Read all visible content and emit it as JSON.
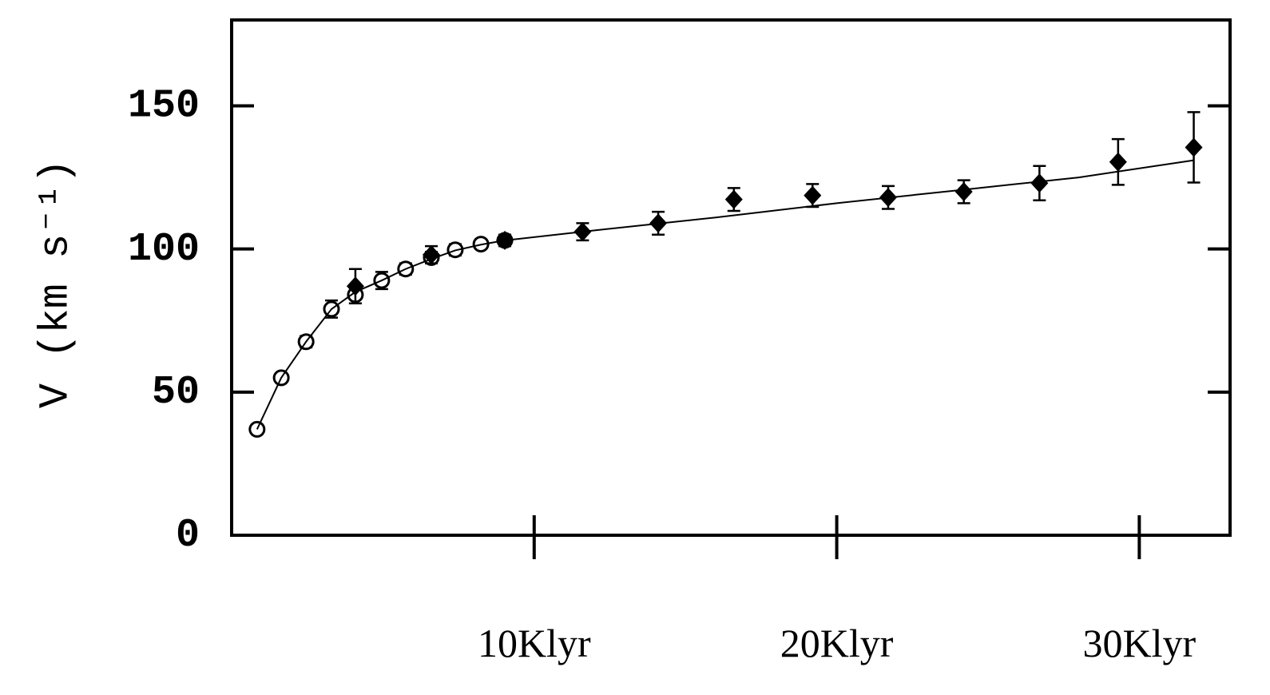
{
  "chart_data": {
    "type": "scatter",
    "y_label": "V (km s⁻¹)",
    "xlim": [
      0,
      33
    ],
    "xticks": [
      {
        "value": 10,
        "label": "10Klyr"
      },
      {
        "value": 20,
        "label": "20Klyr"
      },
      {
        "value": 30,
        "label": "30Klyr"
      }
    ],
    "ylim": [
      0,
      180
    ],
    "yticks": [
      0,
      50,
      100,
      150
    ],
    "series": [
      {
        "marker": "open-circle",
        "color": "#000000",
        "x": [
          0.84,
          1.64,
          2.46,
          3.3,
          4.09,
          4.96,
          5.75,
          6.6,
          7.39,
          8.24,
          9.03
        ],
        "values": [
          37,
          55,
          67.6,
          79,
          84,
          89,
          93,
          97,
          99.7,
          101.7,
          103
        ],
        "errors": [
          1.5,
          1.5,
          2,
          3,
          3,
          3,
          2,
          2,
          2,
          1.5,
          1.5
        ]
      },
      {
        "marker": "filled-diamond",
        "color": "#000000",
        "x": [
          4.09,
          6.6,
          9.03,
          11.6,
          14.1,
          16.6,
          19.2,
          21.7,
          24.2,
          26.7,
          29.3,
          31.8
        ],
        "values": [
          87,
          98,
          103,
          106,
          109,
          117.3,
          118.7,
          118,
          120,
          123,
          130.4,
          135.5
        ],
        "errors": [
          6,
          3,
          2,
          3,
          4,
          4,
          4,
          4,
          4,
          6,
          8,
          12.3
        ]
      },
      {
        "marker": "line",
        "color": "#000000",
        "x": [
          0.84,
          1.64,
          2.46,
          3.3,
          4.09,
          4.96,
          5.75,
          6.6,
          7.39,
          8.24,
          9.03,
          12,
          16,
          20,
          24,
          28,
          31.8
        ],
        "values": [
          37,
          55,
          67.6,
          79,
          85,
          89,
          93,
          96.5,
          99.5,
          101.5,
          103,
          106.5,
          111,
          116,
          120.5,
          125,
          131
        ]
      }
    ]
  }
}
